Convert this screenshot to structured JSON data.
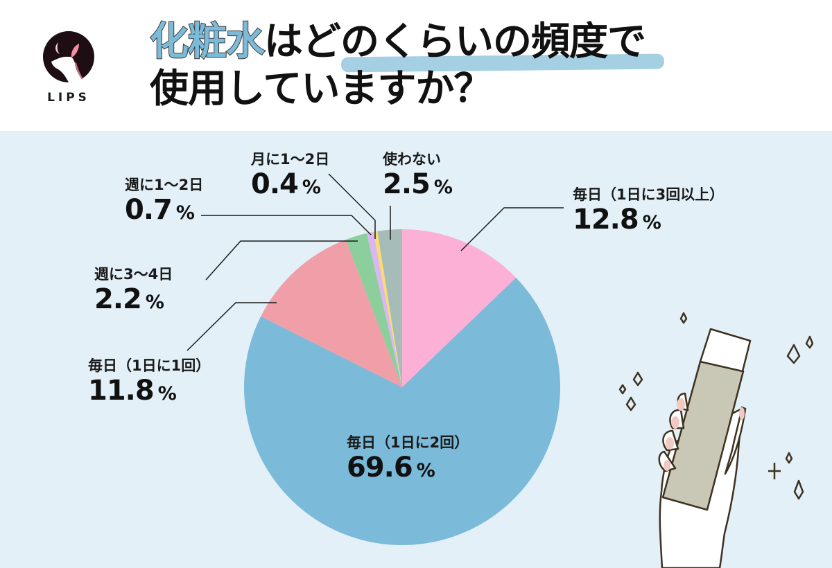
{
  "brand": {
    "logo_text": "LIPS"
  },
  "title": {
    "accent": "化粧水",
    "line1_rest": "はどのくらいの頻度で",
    "line2": "使用していますか？"
  },
  "colors": {
    "background_body": "#e3f0f7",
    "title_accent": "#7bbad8",
    "title_highlight": "#a5d0e3",
    "slice_daily_3plus": "#fdb0d5",
    "slice_daily_2": "#7bbad8",
    "slice_daily_1": "#f09ea8",
    "slice_weekly_3_4": "#8ccf9c",
    "slice_weekly_1_2": "#d9b8f2",
    "slice_monthly_1_2": "#fddc6e",
    "slice_never": "#a6bcb8"
  },
  "chart_data": {
    "type": "pie",
    "title": "化粧水はどのくらいの頻度で使用していますか？",
    "start_angle": "12 o'clock, clockwise",
    "categories": [
      "毎日（1日に3回以上）",
      "毎日（1日に2回）",
      "毎日（1日に1回）",
      "週に3〜4日",
      "週に1〜2日",
      "月に1〜2日",
      "使わない"
    ],
    "values": [
      12.8,
      69.6,
      11.8,
      2.2,
      0.7,
      0.4,
      2.5
    ],
    "unit": "%",
    "colors": [
      "#fdb0d5",
      "#7bbad8",
      "#f09ea8",
      "#8ccf9c",
      "#d9b8f2",
      "#fddc6e",
      "#a6bcb8"
    ]
  },
  "labels": [
    {
      "cat": "毎日（1日に3回以上）",
      "val": "12.8",
      "pct": "%"
    },
    {
      "cat": "毎日（1日に2回）",
      "val": "69.6",
      "pct": "%"
    },
    {
      "cat": "毎日（1日に1回）",
      "val": "11.8",
      "pct": "%"
    },
    {
      "cat": "週に3〜4日",
      "val": "2.2",
      "pct": "%"
    },
    {
      "cat": "週に1〜2日",
      "val": "0.7",
      "pct": "%"
    },
    {
      "cat": "月に1〜2日",
      "val": "0.4",
      "pct": "%"
    },
    {
      "cat": "使わない",
      "val": "2.5",
      "pct": "%"
    }
  ]
}
